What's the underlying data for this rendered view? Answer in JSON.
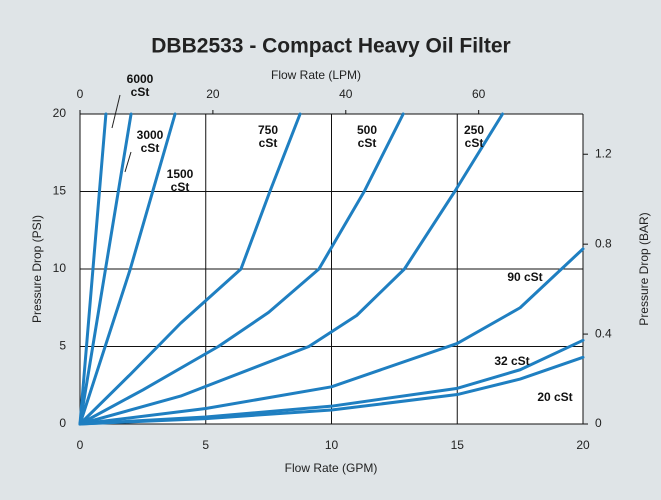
{
  "chart_data": {
    "type": "line",
    "title": "DBB2533 - Compact Heavy Oil Filter",
    "x_label": "Flow Rate (GPM)",
    "x2_label": "Flow Rate (LPM)",
    "y_label": "Pressure Drop (PSI)",
    "y2_label": "Pressure Drop (BAR)",
    "xlim": [
      0,
      20
    ],
    "xticks": [
      0,
      5,
      10,
      15,
      20
    ],
    "x2lim": [
      0,
      75.7
    ],
    "x2ticks": [
      0,
      20,
      40,
      60
    ],
    "ylim": [
      0,
      20
    ],
    "yticks": [
      0,
      5,
      10,
      15,
      20
    ],
    "y2lim": [
      0,
      1.379
    ],
    "y2ticks": [
      0,
      0.4,
      0.8,
      1.2
    ],
    "grid": true,
    "series": [
      {
        "name": "6000 cSt",
        "color": "#1f7fc1",
        "x": [
          0,
          1.03
        ],
        "values": [
          0,
          20
        ]
      },
      {
        "name": "3000 cSt",
        "color": "#1f7fc1",
        "x": [
          0,
          2.03
        ],
        "values": [
          0,
          20
        ]
      },
      {
        "name": "1500 cSt",
        "color": "#1f7fc1",
        "x": [
          0,
          2,
          3.78
        ],
        "values": [
          0,
          10,
          20
        ]
      },
      {
        "name": "750 cSt",
        "color": "#1f7fc1",
        "x": [
          0,
          2,
          4,
          6.4,
          7.55,
          8.75
        ],
        "values": [
          0,
          3.2,
          6.5,
          10,
          15,
          20
        ]
      },
      {
        "name": "500 cSt",
        "color": "#1f7fc1",
        "x": [
          0,
          2.5,
          5.5,
          7.5,
          9.5,
          11.3,
          12.85
        ],
        "values": [
          0,
          2.2,
          5,
          7.2,
          10,
          15,
          20
        ]
      },
      {
        "name": "250 cSt",
        "color": "#1f7fc1",
        "x": [
          0,
          4,
          9.1,
          11,
          12.9,
          14.9,
          16.8
        ],
        "values": [
          0,
          1.8,
          5,
          7,
          10,
          15,
          20
        ]
      },
      {
        "name": "90 cSt",
        "color": "#1f7fc1",
        "x": [
          0,
          5,
          10,
          15,
          17.5,
          20
        ],
        "values": [
          0,
          1,
          2.4,
          5.2,
          7.5,
          11.3
        ]
      },
      {
        "name": "32 cSt",
        "color": "#1f7fc1",
        "x": [
          0,
          5,
          10,
          15,
          17.5,
          20
        ],
        "values": [
          0,
          0.45,
          1.15,
          2.3,
          3.5,
          5.4
        ]
      },
      {
        "name": "20 cSt",
        "color": "#1f7fc1",
        "x": [
          0,
          5,
          10,
          15,
          17.5,
          20
        ],
        "values": [
          0,
          0.35,
          0.9,
          1.9,
          2.9,
          4.3
        ]
      }
    ]
  }
}
